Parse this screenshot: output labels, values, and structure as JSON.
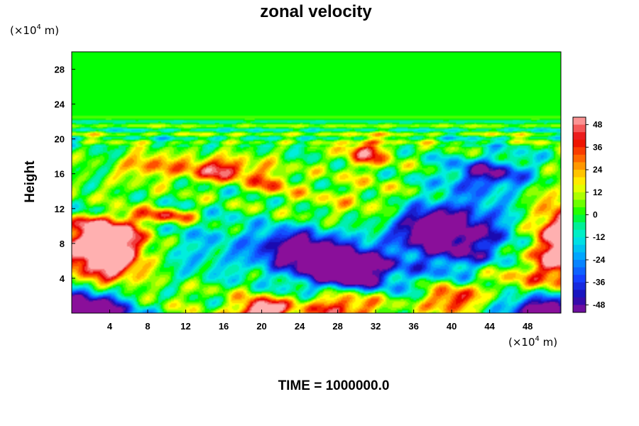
{
  "chart_data": {
    "type": "heatmap",
    "title": "zonal velocity",
    "ylabel": "Height",
    "xlabel": "",
    "x_unit": {
      "prefix": "(×10",
      "exponent": "4",
      "suffix": " m)"
    },
    "y_unit": {
      "prefix": "(×10",
      "exponent": "4",
      "suffix": " m)"
    },
    "xlim": [
      0,
      51.5
    ],
    "ylim": [
      0,
      30
    ],
    "x_ticks": [
      "4",
      "8",
      "12",
      "16",
      "20",
      "24",
      "28",
      "32",
      "36",
      "40",
      "44",
      "48"
    ],
    "y_ticks": [
      "4",
      "8",
      "12",
      "16",
      "20",
      "24",
      "28"
    ],
    "x_tick_values": [
      4,
      8,
      12,
      16,
      20,
      24,
      28,
      32,
      36,
      40,
      44,
      48
    ],
    "y_tick_values": [
      4,
      8,
      12,
      16,
      20,
      24,
      28
    ],
    "colorbar": {
      "ticks": [
        "48",
        "36",
        "24",
        "12",
        "0",
        "-12",
        "-24",
        "-36",
        "-48"
      ],
      "tick_values": [
        48,
        36,
        24,
        12,
        0,
        -12,
        -24,
        -36,
        -48
      ],
      "range": [
        -52,
        52
      ],
      "stops": [
        {
          "v": -52,
          "c": "#8a0f9a"
        },
        {
          "v": -44,
          "c": "#1a0ab0"
        },
        {
          "v": -34,
          "c": "#1540ff"
        },
        {
          "v": -22,
          "c": "#00a6ff"
        },
        {
          "v": -12,
          "c": "#00eedd"
        },
        {
          "v": -4,
          "c": "#00f080"
        },
        {
          "v": 0,
          "c": "#00ff00"
        },
        {
          "v": 8,
          "c": "#90ff00"
        },
        {
          "v": 16,
          "c": "#ffff00"
        },
        {
          "v": 24,
          "c": "#ffb000"
        },
        {
          "v": 32,
          "c": "#ff5000"
        },
        {
          "v": 40,
          "c": "#e80000"
        },
        {
          "v": 52,
          "c": "#ffb0b0"
        }
      ]
    },
    "field_features": [
      {
        "x": 3.5,
        "y": 7.5,
        "sx": 3.0,
        "sy": 3.0,
        "amp": 85
      },
      {
        "x": 52.0,
        "y": 8.0,
        "sx": 2.5,
        "sy": 3.5,
        "amp": 70
      },
      {
        "x": 1.5,
        "y": 0.2,
        "sx": 3.5,
        "sy": 2.0,
        "amp": -80
      },
      {
        "x": 50.0,
        "y": 0.2,
        "sx": 3.0,
        "sy": 1.5,
        "amp": -70
      },
      {
        "x": 29.0,
        "y": 5.0,
        "sx": 3.5,
        "sy": 2.0,
        "amp": -80
      },
      {
        "x": 23.5,
        "y": 7.5,
        "sx": 3.0,
        "sy": 1.6,
        "amp": -55
      },
      {
        "x": 40.5,
        "y": 9.0,
        "sx": 4.0,
        "sy": 3.0,
        "amp": -60
      },
      {
        "x": 44.0,
        "y": 16.0,
        "sx": 3.0,
        "sy": 1.3,
        "amp": -45
      },
      {
        "x": 37.0,
        "y": 10.0,
        "sx": 2.0,
        "sy": 1.4,
        "amp": -35
      },
      {
        "x": 15.5,
        "y": 16.5,
        "sx": 3.0,
        "sy": 1.0,
        "amp": 45
      },
      {
        "x": 31.0,
        "y": 18.5,
        "sx": 1.8,
        "sy": 1.2,
        "amp": 40
      },
      {
        "x": 20.0,
        "y": 0.2,
        "sx": 1.8,
        "sy": 1.0,
        "amp": 70
      },
      {
        "x": 28.5,
        "y": 1.0,
        "sx": 3.0,
        "sy": 1.4,
        "amp": 50
      },
      {
        "x": 40.0,
        "y": 1.5,
        "sx": 2.0,
        "sy": 1.2,
        "amp": 45
      },
      {
        "x": 10.5,
        "y": 11.2,
        "sx": 2.0,
        "sy": 0.6,
        "amp": 35
      },
      {
        "x": 8.0,
        "y": 17.0,
        "sx": 2.0,
        "sy": 1.0,
        "amp": 30
      },
      {
        "x": 21.0,
        "y": 15.0,
        "sx": 1.5,
        "sy": 1.0,
        "amp": 25
      },
      {
        "x": 14.0,
        "y": 7.0,
        "sx": 5.0,
        "sy": 3.0,
        "amp": -15
      },
      {
        "x": 30.0,
        "y": 13.0,
        "sx": 6.0,
        "sy": 2.0,
        "amp": 12
      },
      {
        "x": 3.0,
        "y": 12.0,
        "sx": 2.0,
        "sy": 0.8,
        "amp": -30
      },
      {
        "x": 12.0,
        "y": 2.0,
        "sx": 5.0,
        "sy": 1.5,
        "amp": 10
      },
      {
        "x": 46.0,
        "y": 4.0,
        "sx": 3.0,
        "sy": 1.5,
        "amp": 20
      }
    ],
    "annotation": "TIME = 1000000.0"
  }
}
